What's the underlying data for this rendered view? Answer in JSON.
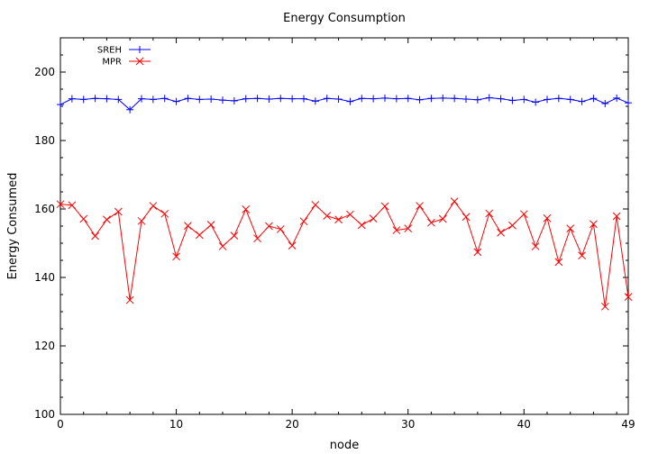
{
  "chart_data": {
    "type": "line",
    "title": "Energy Consumption",
    "xlabel": "node",
    "ylabel": "Energy Consumed",
    "xlim": [
      0,
      49
    ],
    "ylim": [
      100,
      210
    ],
    "xticks": [
      0,
      10,
      20,
      30,
      40,
      49
    ],
    "yticks": [
      100,
      120,
      140,
      160,
      180,
      200
    ],
    "grid": false,
    "legend_position": "top-left",
    "series": [
      {
        "name": "SREH",
        "color": "#0000ff",
        "marker": "plus",
        "x": [
          0,
          1,
          2,
          3,
          4,
          5,
          6,
          7,
          8,
          9,
          10,
          11,
          12,
          13,
          14,
          15,
          16,
          17,
          18,
          19,
          20,
          21,
          22,
          23,
          24,
          25,
          26,
          27,
          28,
          29,
          30,
          31,
          32,
          33,
          34,
          35,
          36,
          37,
          38,
          39,
          40,
          41,
          42,
          43,
          44,
          45,
          46,
          47,
          48,
          49
        ],
        "values": [
          190.5,
          192.2,
          192.0,
          192.3,
          192.2,
          192.0,
          189.0,
          192.2,
          192.0,
          192.3,
          191.4,
          192.3,
          192.0,
          192.1,
          191.8,
          191.6,
          192.2,
          192.3,
          192.1,
          192.3,
          192.2,
          192.2,
          191.5,
          192.3,
          192.1,
          191.4,
          192.3,
          192.2,
          192.4,
          192.2,
          192.3,
          191.9,
          192.3,
          192.4,
          192.3,
          192.1,
          191.9,
          192.5,
          192.2,
          191.7,
          192.0,
          191.2,
          192.0,
          192.3,
          192.0,
          191.4,
          192.3,
          190.8,
          192.4,
          191.0
        ]
      },
      {
        "name": "MPR",
        "color": "#ff0000",
        "marker": "x",
        "x": [
          0,
          1,
          2,
          3,
          4,
          5,
          6,
          7,
          8,
          9,
          10,
          11,
          12,
          13,
          14,
          15,
          16,
          17,
          18,
          19,
          20,
          21,
          22,
          23,
          24,
          25,
          26,
          27,
          28,
          29,
          30,
          31,
          32,
          33,
          34,
          35,
          36,
          37,
          38,
          39,
          40,
          41,
          42,
          43,
          44,
          45,
          46,
          47,
          48,
          49
        ],
        "values": [
          161.4,
          161.1,
          157.1,
          152.1,
          156.9,
          159.2,
          133.4,
          156.5,
          160.9,
          158.6,
          146.1,
          155.1,
          152.4,
          155.4,
          149.1,
          152.2,
          159.9,
          151.4,
          155.0,
          154.1,
          149.3,
          156.4,
          161.2,
          158.0,
          156.9,
          158.4,
          155.3,
          157.2,
          160.8,
          153.8,
          154.3,
          160.9,
          156.0,
          157.1,
          162.2,
          157.7,
          147.4,
          158.7,
          153.1,
          155.2,
          158.5,
          149.1,
          157.3,
          144.5,
          154.3,
          146.4,
          155.6,
          131.5,
          157.9,
          134.3
        ]
      }
    ]
  }
}
